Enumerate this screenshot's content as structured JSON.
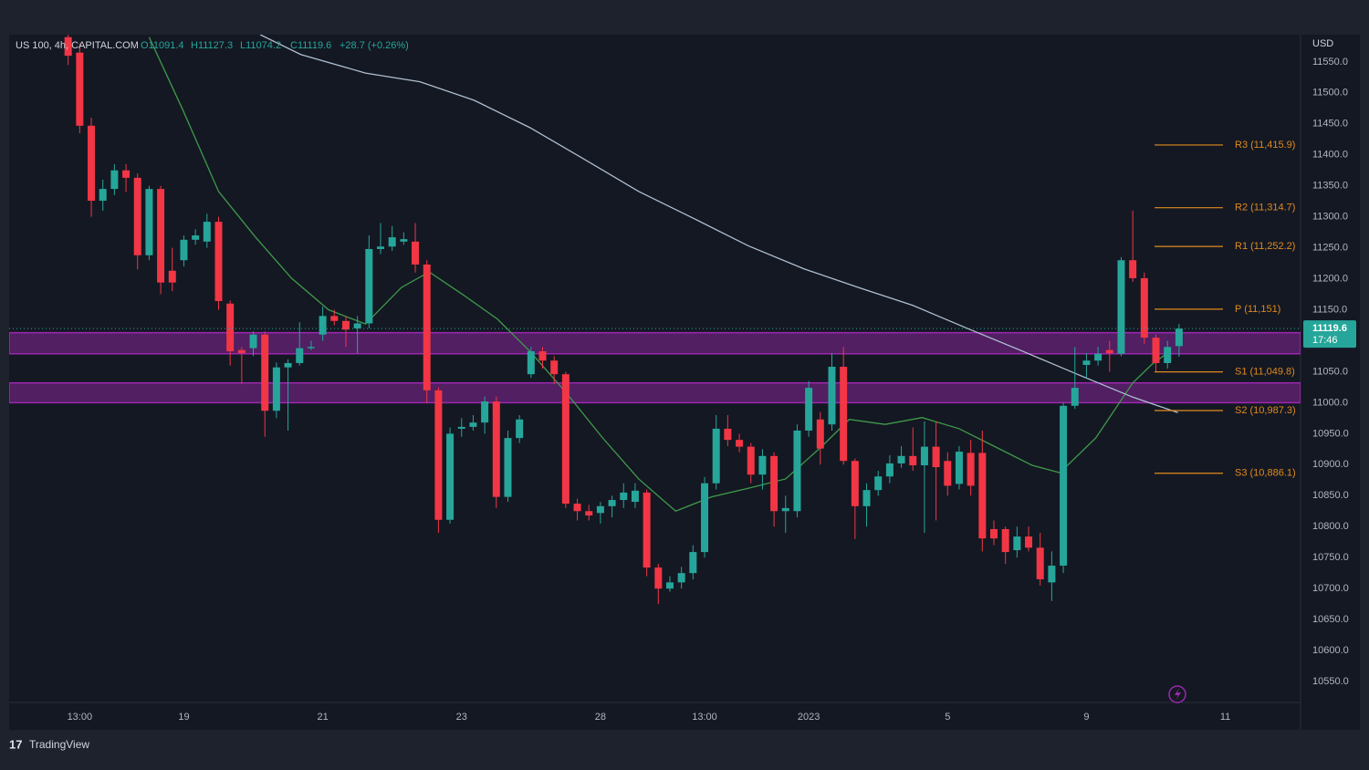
{
  "chart_data": {
    "type": "candlestick",
    "symbol": "US 100, 4h, CAPITAL.COM",
    "ohlc_text": [
      "O11091.4",
      "H11127.3",
      "L11074.2",
      "C11119.6"
    ],
    "change_text": "+28.7 (+0.26%)",
    "currency": "USD",
    "last_price_label": "11119.6",
    "countdown": "17:46",
    "brand": "TradingView",
    "up_color": "#26a69a",
    "down_color": "#f23645",
    "candles": {
      "open": [
        11590,
        11565,
        11447,
        11326,
        11345,
        11375,
        11363,
        11238,
        11345,
        11213,
        11230,
        11263,
        11260,
        11292,
        11160,
        11085,
        11088,
        11110,
        10987,
        11057,
        11064,
        11088,
        11110,
        11140,
        11132,
        11120,
        11128,
        11248,
        11252,
        11260,
        11260,
        11223,
        11020,
        10811,
        10958,
        10961,
        10968,
        11002,
        10848,
        10943,
        11046,
        11083,
        11068,
        11046,
        10837,
        10825,
        10822,
        10833,
        10843,
        10840,
        10855,
        10734,
        10700,
        10710,
        10725,
        10759,
        10870,
        10958,
        10940,
        10929,
        10884,
        10914,
        10825,
        10825,
        10955,
        10973,
        10965,
        11058,
        10906,
        10833,
        10859,
        10881,
        10902,
        10914,
        10899,
        10929,
        10906,
        10869,
        10919,
        10919,
        10796,
        10796,
        10762,
        10784,
        10766,
        10710,
        10737,
        10995,
        11061,
        11068,
        11085,
        11079,
        11230,
        11201,
        11105,
        11064,
        11091.4
      ],
      "high": [
        11600,
        11580,
        11460,
        11360,
        11385,
        11385,
        11370,
        11350,
        11350,
        11250,
        11270,
        11280,
        11305,
        11300,
        11165,
        11090,
        11115,
        11115,
        11065,
        11070,
        11130,
        11100,
        11155,
        11150,
        11140,
        11140,
        11270,
        11290,
        11285,
        11275,
        11290,
        11230,
        11025,
        10960,
        10975,
        10980,
        11010,
        11010,
        10955,
        10980,
        11090,
        11090,
        11075,
        11050,
        10845,
        10835,
        10840,
        10850,
        10870,
        10870,
        10860,
        10740,
        10720,
        10735,
        10770,
        10880,
        10980,
        10980,
        10950,
        10935,
        10925,
        10920,
        10850,
        10965,
        11035,
        10985,
        11080,
        11090,
        10910,
        10870,
        10890,
        10915,
        10930,
        10960,
        10970,
        10970,
        10920,
        10930,
        10940,
        10955,
        10810,
        10800,
        10800,
        10800,
        10790,
        10760,
        11000,
        11090,
        11080,
        11090,
        11100,
        11235,
        11310,
        11210,
        11110,
        11100,
        11127.3
      ],
      "low": [
        11545,
        11435,
        11300,
        11310,
        11335,
        11340,
        11215,
        11230,
        11175,
        11180,
        11220,
        11255,
        11250,
        11150,
        11060,
        11030,
        11075,
        10945,
        10975,
        10955,
        11060,
        11085,
        11100,
        11125,
        11090,
        11080,
        11120,
        11240,
        11245,
        11255,
        11210,
        11000,
        10790,
        10805,
        10945,
        10955,
        10950,
        10830,
        10840,
        10935,
        11040,
        11055,
        11030,
        10830,
        10810,
        10810,
        10805,
        10815,
        10830,
        10830,
        10720,
        10675,
        10695,
        10700,
        10715,
        10750,
        10860,
        10930,
        10920,
        10870,
        10860,
        10800,
        10790,
        10815,
        10945,
        10900,
        10955,
        10900,
        10780,
        10800,
        10850,
        10870,
        10895,
        10890,
        10790,
        10810,
        10850,
        10860,
        10850,
        10760,
        10770,
        10740,
        10750,
        10760,
        10705,
        10680,
        10725,
        10990,
        11040,
        11060,
        11050,
        11075,
        11195,
        11095,
        11050,
        11055,
        11074.2
      ],
      "close": [
        11560,
        11447,
        11326,
        11345,
        11375,
        11363,
        11238,
        11345,
        11194,
        11194,
        11263,
        11270,
        11292,
        11164,
        11083,
        11080,
        11110,
        10987,
        11057,
        11064,
        11088,
        11090,
        11140,
        11132,
        11118,
        11128,
        11248,
        11252,
        11267,
        11264,
        11223,
        11020,
        10811,
        10950,
        10961,
        10968,
        11002,
        10848,
        10943,
        10973,
        11083,
        11068,
        11046,
        10837,
        10825,
        10818,
        10833,
        10843,
        10855,
        10858,
        10734,
        10700,
        10710,
        10725,
        10759,
        10870,
        10958,
        10940,
        10929,
        10884,
        10914,
        10825,
        10830,
        10955,
        11024,
        10926,
        11058,
        10906,
        10833,
        10859,
        10881,
        10902,
        10914,
        10899,
        10929,
        10896,
        10866,
        10921,
        10866,
        10781,
        10781,
        10759,
        10784,
        10766,
        10715,
        10737,
        10995,
        11024,
        11068,
        11079,
        11080,
        11230,
        11201,
        11105,
        11064,
        11090,
        11119.6
      ]
    },
    "lines": [
      {
        "color": "#3f9b4a",
        "x": [
          7,
          9.9,
          13,
          16.2,
          19.3,
          22.5,
          25.7,
          28.8,
          31.2,
          34.3,
          37.1,
          39.9,
          43,
          46.2,
          49.3,
          52.5,
          55.6,
          58.8,
          62,
          65.1,
          67.5,
          70.6,
          73.8,
          77,
          80.1,
          83.3,
          85.7,
          88.8,
          92,
          93.6,
          95.2
        ],
        "values": [
          11590,
          11473,
          11341,
          11267,
          11201,
          11150,
          11127,
          11186,
          11211,
          11172,
          11135,
          11083,
          11017,
          10943,
          10877,
          10825,
          10848,
          10862,
          10877,
          10929,
          10973,
          10965,
          10976,
          10958,
          10929,
          10899,
          10887,
          10943,
          11032,
          11061,
          11083
        ]
      },
      {
        "color": "#aebfd0",
        "x": [
          16.6,
          20.1,
          25.7,
          30.4,
          35.1,
          39.9,
          44.6,
          49.3,
          54.1,
          58.8,
          63.6,
          68.3,
          73,
          77.7,
          82.5,
          87.2,
          92,
          95.9
        ],
        "values": [
          11594,
          11562,
          11532,
          11518,
          11488,
          11444,
          11393,
          11341,
          11297,
          11253,
          11216,
          11186,
          11157,
          11120,
          11083,
          11046,
          11009,
          10984
        ]
      }
    ],
    "zones": [
      {
        "from": 11079,
        "to": 11113
      },
      {
        "from": 11000,
        "to": 11032
      }
    ],
    "zone_color": "#9c27b0",
    "levels": [
      {
        "label": "R3 (11,415.9)",
        "value": 11415.9
      },
      {
        "label": "R2 (11,314.7)",
        "value": 11314.7
      },
      {
        "label": "R1 (11,252.2)",
        "value": 11252.2
      },
      {
        "label": "P (11,151)",
        "value": 11151
      },
      {
        "label": "S1 (11,049.8)",
        "value": 11049.8
      },
      {
        "label": "S2 (10,987.3)",
        "value": 10987.3
      },
      {
        "label": "S3 (10,886.1)",
        "value": 10886.1
      }
    ],
    "level_color": "#e08a1e",
    "xlim": [
      -5.1,
      106.5
    ],
    "xticks": [
      {
        "value": 1,
        "label": "13:00"
      },
      {
        "value": 10,
        "label": "19"
      },
      {
        "value": 22,
        "label": "21"
      },
      {
        "value": 34,
        "label": "23"
      },
      {
        "value": 46,
        "label": "28"
      },
      {
        "value": 55,
        "label": "13:00"
      },
      {
        "value": 64,
        "label": "2023"
      },
      {
        "value": 76,
        "label": "5"
      },
      {
        "value": 88,
        "label": "9"
      },
      {
        "value": 100,
        "label": "11"
      }
    ],
    "ylim": [
      10472,
      11594
    ],
    "yticks": [
      {
        "value": 10550,
        "label": "10550.0"
      },
      {
        "value": 10600,
        "label": "10600.0"
      },
      {
        "value": 10650,
        "label": "10650.0"
      },
      {
        "value": 10700,
        "label": "10700.0"
      },
      {
        "value": 10750,
        "label": "10750.0"
      },
      {
        "value": 10800,
        "label": "10800.0"
      },
      {
        "value": 10850,
        "label": "10850.0"
      },
      {
        "value": 10900,
        "label": "10900.0"
      },
      {
        "value": 10950,
        "label": "10950.0"
      },
      {
        "value": 11000,
        "label": "11000.0"
      },
      {
        "value": 11050,
        "label": "11050.0"
      },
      {
        "value": 11100,
        "label": "11100.0"
      },
      {
        "value": 11150,
        "label": "11150.0"
      },
      {
        "value": 11200,
        "label": "11200.0"
      },
      {
        "value": 11250,
        "label": "11250.0"
      },
      {
        "value": 11300,
        "label": "11300.0"
      },
      {
        "value": 11350,
        "label": "11350.0"
      },
      {
        "value": 11400,
        "label": "11400.0"
      },
      {
        "value": 11450,
        "label": "11450.0"
      },
      {
        "value": 11500,
        "label": "11500.0"
      },
      {
        "value": 11550,
        "label": "11550.0"
      }
    ],
    "grid": false
  }
}
